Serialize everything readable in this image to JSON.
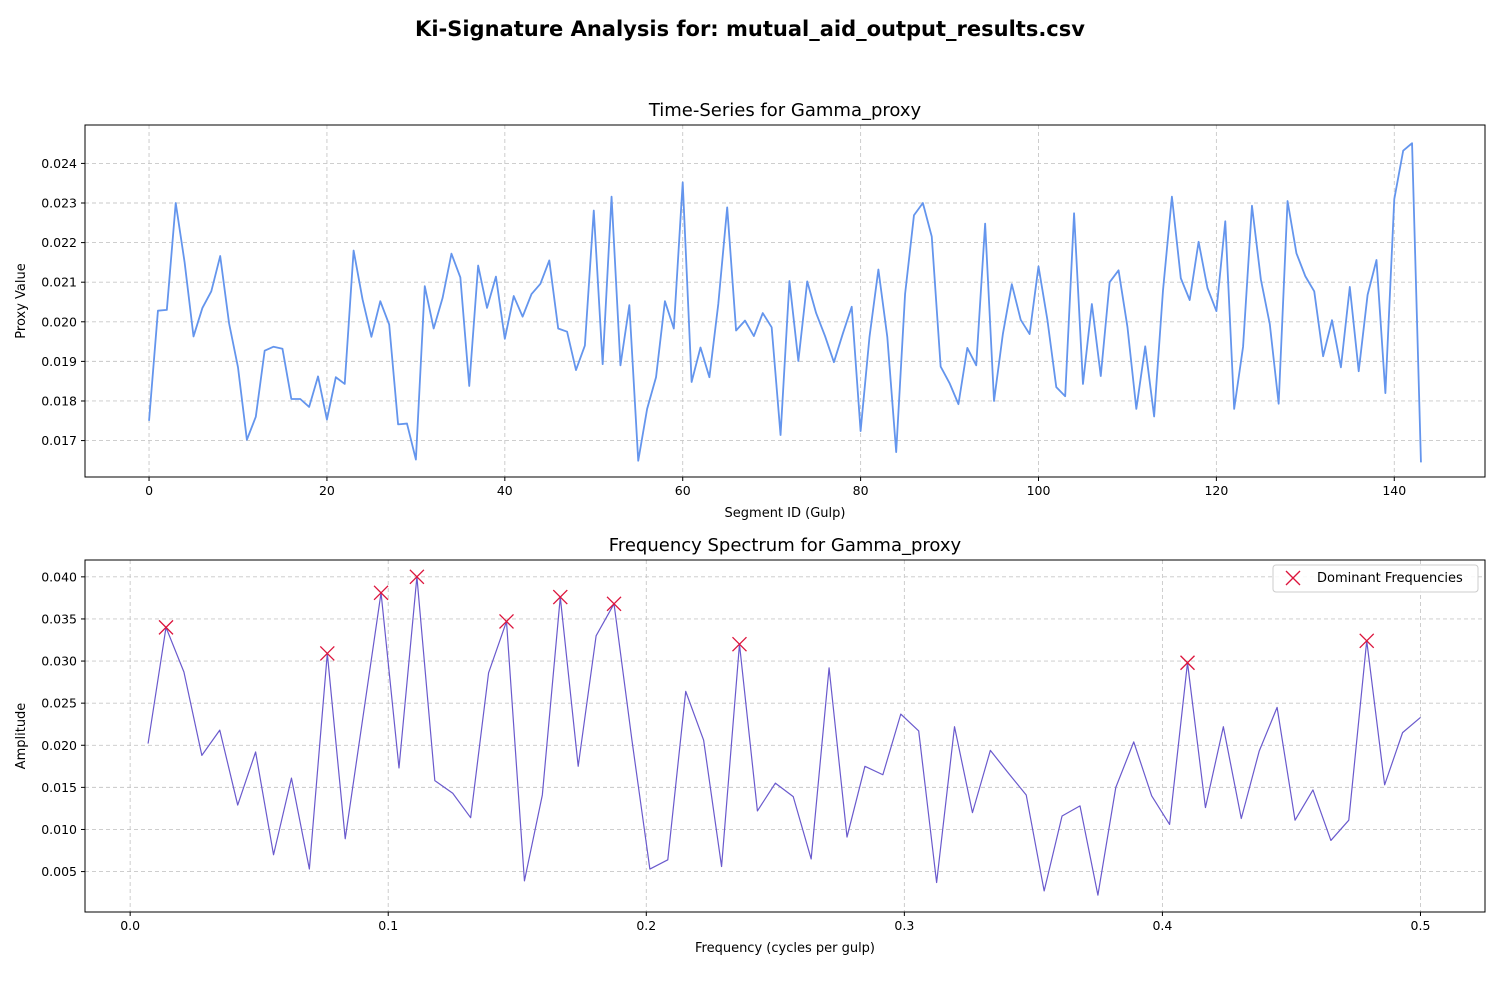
{
  "figure": {
    "title": "Ki-Signature Analysis for: mutual_aid_output_results.csv"
  },
  "chart_data": [
    {
      "type": "line",
      "title": "Time-Series for Gamma_proxy",
      "xlabel": "Segment ID (Gulp)",
      "ylabel": "Proxy Value",
      "xlim": [
        -7.2,
        150.2
      ],
      "ylim": [
        0.01608,
        0.02497
      ],
      "xticks": [
        0,
        20,
        40,
        60,
        80,
        100,
        120,
        140
      ],
      "xtick_labels": [
        "0",
        "20",
        "40",
        "60",
        "80",
        "100",
        "120",
        "140"
      ],
      "yticks": [
        0.017,
        0.018,
        0.019,
        0.02,
        0.021,
        0.022,
        0.023,
        0.024
      ],
      "ytick_labels": [
        "0.017",
        "0.018",
        "0.019",
        "0.020",
        "0.021",
        "0.022",
        "0.023",
        "0.024"
      ],
      "grid": true,
      "color": "#6495ed",
      "series": [
        {
          "x": [
            0,
            1,
            2,
            3,
            4,
            5,
            6,
            7,
            8,
            9,
            10,
            11,
            12,
            13,
            14,
            15,
            16,
            17,
            18,
            19,
            20,
            21,
            22,
            23,
            24,
            25,
            26,
            27,
            28,
            29,
            30,
            31,
            32,
            33,
            34,
            35,
            36,
            37,
            38,
            39,
            40,
            41,
            42,
            43,
            44,
            45,
            46,
            47,
            48,
            49,
            50,
            51,
            52,
            53,
            54,
            55,
            56,
            57,
            58,
            59,
            60,
            61,
            62,
            63,
            64,
            65,
            66,
            67,
            68,
            69,
            70,
            71,
            72,
            73,
            74,
            75,
            76,
            77,
            78,
            79,
            80,
            81,
            82,
            83,
            84,
            85,
            86,
            87,
            88,
            89,
            90,
            91,
            92,
            93,
            94,
            95,
            96,
            97,
            98,
            99,
            100,
            101,
            102,
            103,
            104,
            105,
            106,
            107,
            108,
            109,
            110,
            111,
            112,
            113,
            114,
            115,
            116,
            117,
            118,
            119,
            120,
            121,
            122,
            123,
            124,
            125,
            126,
            127,
            128,
            129,
            130,
            131,
            132,
            133,
            134,
            135,
            136,
            137,
            138,
            139,
            140,
            141,
            142,
            143
          ],
          "values": [
            0.0175,
            0.02028,
            0.0203,
            0.023,
            0.0215,
            0.01963,
            0.02035,
            0.02077,
            0.02166,
            0.01996,
            0.01885,
            0.01702,
            0.0176,
            0.01927,
            0.01937,
            0.01932,
            0.01805,
            0.01805,
            0.01785,
            0.01862,
            0.01753,
            0.0186,
            0.01843,
            0.0218,
            0.02057,
            0.01962,
            0.02052,
            0.01993,
            0.01741,
            0.01743,
            0.01652,
            0.0209,
            0.01983,
            0.0206,
            0.02172,
            0.02112,
            0.01838,
            0.02142,
            0.02035,
            0.02114,
            0.01957,
            0.02065,
            0.02013,
            0.0207,
            0.02096,
            0.02155,
            0.01983,
            0.01975,
            0.01878,
            0.0194,
            0.02281,
            0.01893,
            0.02316,
            0.0189,
            0.02042,
            0.01649,
            0.0178,
            0.0186,
            0.02052,
            0.01983,
            0.02352,
            0.01848,
            0.01935,
            0.0186,
            0.02045,
            0.02289,
            0.01978,
            0.02003,
            0.01964,
            0.02022,
            0.01986,
            0.01714,
            0.02103,
            0.01901,
            0.02102,
            0.02022,
            0.01964,
            0.01898,
            0.0197,
            0.02038,
            0.01724,
            0.01962,
            0.02132,
            0.01962,
            0.01671,
            0.0207,
            0.02269,
            0.023,
            0.02215,
            0.01887,
            0.01845,
            0.01792,
            0.01934,
            0.0189,
            0.02248,
            0.018,
            0.0197,
            0.02095,
            0.02005,
            0.01969,
            0.0214,
            0.02005,
            0.01835,
            0.01812,
            0.02274,
            0.01843,
            0.02045,
            0.01863,
            0.021,
            0.0213,
            0.01987,
            0.0178,
            0.01938,
            0.01761,
            0.0208,
            0.02316,
            0.0211,
            0.02055,
            0.02202,
            0.02085,
            0.02027,
            0.02254,
            0.0178,
            0.01937,
            0.02293,
            0.02107,
            0.01995,
            0.01793,
            0.02305,
            0.02173,
            0.02115,
            0.02077,
            0.01913,
            0.02004,
            0.01885,
            0.02088,
            0.01875,
            0.02068,
            0.02156,
            0.0182,
            0.0231,
            0.02432,
            0.02451,
            0.01645
          ]
        }
      ]
    },
    {
      "type": "line",
      "title": "Frequency Spectrum for Gamma_proxy",
      "xlabel": "Frequency (cycles per gulp)",
      "ylabel": "Amplitude",
      "xlim": [
        -0.0175,
        0.525
      ],
      "ylim": [
        0.0002,
        0.042
      ],
      "xticks": [
        0.0,
        0.1,
        0.2,
        0.3,
        0.4,
        0.5
      ],
      "xtick_labels": [
        "0.0",
        "0.1",
        "0.2",
        "0.3",
        "0.4",
        "0.5"
      ],
      "yticks": [
        0.005,
        0.01,
        0.015,
        0.02,
        0.025,
        0.03,
        0.035,
        0.04
      ],
      "ytick_labels": [
        "0.005",
        "0.010",
        "0.015",
        "0.020",
        "0.025",
        "0.030",
        "0.035",
        "0.040"
      ],
      "grid": true,
      "legend": "top-right",
      "color": "#6a5acd",
      "marker_color": "#dc143c",
      "series": [
        {
          "x": [
            0.00694,
            0.01389,
            0.02083,
            0.02778,
            0.03472,
            0.04167,
            0.04861,
            0.05556,
            0.0625,
            0.06944,
            0.07639,
            0.08333,
            0.09028,
            0.09722,
            0.10417,
            0.11111,
            0.11806,
            0.125,
            0.13194,
            0.13889,
            0.14583,
            0.15278,
            0.15972,
            0.16667,
            0.17361,
            0.18056,
            0.1875,
            0.19444,
            0.20139,
            0.20833,
            0.21528,
            0.22222,
            0.22917,
            0.23611,
            0.24306,
            0.25,
            0.25694,
            0.26389,
            0.27083,
            0.27778,
            0.28472,
            0.29167,
            0.29861,
            0.30556,
            0.3125,
            0.31944,
            0.32639,
            0.33333,
            0.34028,
            0.34722,
            0.35417,
            0.36111,
            0.36806,
            0.375,
            0.38194,
            0.38889,
            0.39583,
            0.40278,
            0.40972,
            0.41667,
            0.42361,
            0.43056,
            0.4375,
            0.44444,
            0.45139,
            0.45833,
            0.46528,
            0.47222,
            0.47917,
            0.48611,
            0.49306,
            0.5
          ],
          "values": [
            0.0202,
            0.034,
            0.0287,
            0.0188,
            0.0218,
            0.0129,
            0.0192,
            0.007,
            0.0161,
            0.0053,
            0.0309,
            0.0089,
            0.0235,
            0.0381,
            0.0173,
            0.04,
            0.0158,
            0.0143,
            0.0114,
            0.0286,
            0.0347,
            0.0039,
            0.0141,
            0.0376,
            0.0175,
            0.033,
            0.0368,
            0.0206,
            0.0053,
            0.0064,
            0.0264,
            0.0206,
            0.0056,
            0.032,
            0.0122,
            0.0155,
            0.0139,
            0.0065,
            0.0292,
            0.0091,
            0.0175,
            0.0165,
            0.0237,
            0.0217,
            0.0037,
            0.0222,
            0.012,
            0.0194,
            0.0167,
            0.0141,
            0.0027,
            0.0116,
            0.0128,
            0.0022,
            0.015,
            0.0204,
            0.014,
            0.0106,
            0.0298,
            0.0126,
            0.0222,
            0.0113,
            0.0193,
            0.0245,
            0.0111,
            0.0147,
            0.0087,
            0.0111,
            0.0324,
            0.0153,
            0.0215,
            0.0233
          ]
        },
        {
          "name": "Dominant Frequencies",
          "x": [
            0.01389,
            0.07639,
            0.09722,
            0.11111,
            0.14583,
            0.16667,
            0.1875,
            0.23611,
            0.40972,
            0.47917
          ],
          "values": [
            0.034,
            0.0309,
            0.0381,
            0.04,
            0.0347,
            0.0376,
            0.0368,
            0.032,
            0.0298,
            0.0324
          ]
        }
      ]
    }
  ]
}
